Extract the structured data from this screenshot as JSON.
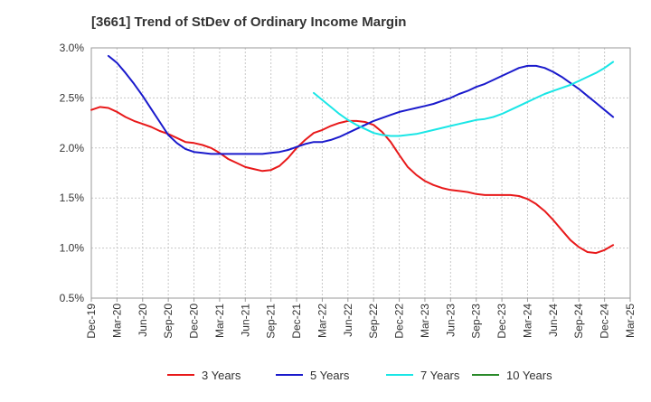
{
  "chart_data": {
    "type": "line",
    "title": "[3661]  Trend of StDev of Ordinary Income Margin",
    "xlabel": "",
    "ylabel": "",
    "x_ticks": [
      "Dec-19",
      "Mar-20",
      "Jun-20",
      "Sep-20",
      "Dec-20",
      "Mar-21",
      "Jun-21",
      "Sep-21",
      "Dec-21",
      "Mar-22",
      "Jun-22",
      "Sep-22",
      "Dec-22",
      "Mar-23",
      "Jun-23",
      "Sep-23",
      "Dec-23",
      "Mar-24",
      "Jun-24",
      "Sep-24",
      "Dec-24",
      "Mar-25"
    ],
    "y_ticks": [
      "0.5%",
      "1.0%",
      "1.5%",
      "2.0%",
      "2.5%",
      "3.0%"
    ],
    "ylim": [
      0.5,
      3.0
    ],
    "y_unit": "%",
    "grid": true,
    "legend_position": "bottom",
    "series": [
      {
        "name": "3 Years",
        "color": "#e8191a",
        "points": [
          {
            "x": "Dec-19",
            "y": 2.38
          },
          {
            "x": "Jan-20",
            "y": 2.41
          },
          {
            "x": "Feb-20",
            "y": 2.4
          },
          {
            "x": "Mar-20",
            "y": 2.36
          },
          {
            "x": "Apr-20",
            "y": 2.31
          },
          {
            "x": "May-20",
            "y": 2.27
          },
          {
            "x": "Jun-20",
            "y": 2.24
          },
          {
            "x": "Jul-20",
            "y": 2.21
          },
          {
            "x": "Aug-20",
            "y": 2.17
          },
          {
            "x": "Sep-20",
            "y": 2.14
          },
          {
            "x": "Oct-20",
            "y": 2.1
          },
          {
            "x": "Nov-20",
            "y": 2.06
          },
          {
            "x": "Dec-20",
            "y": 2.05
          },
          {
            "x": "Jan-21",
            "y": 2.03
          },
          {
            "x": "Feb-21",
            "y": 2.0
          },
          {
            "x": "Mar-21",
            "y": 1.95
          },
          {
            "x": "Apr-21",
            "y": 1.89
          },
          {
            "x": "May-21",
            "y": 1.85
          },
          {
            "x": "Jun-21",
            "y": 1.81
          },
          {
            "x": "Jul-21",
            "y": 1.79
          },
          {
            "x": "Aug-21",
            "y": 1.77
          },
          {
            "x": "Sep-21",
            "y": 1.78
          },
          {
            "x": "Oct-21",
            "y": 1.82
          },
          {
            "x": "Nov-21",
            "y": 1.9
          },
          {
            "x": "Dec-21",
            "y": 2.0
          },
          {
            "x": "Jan-22",
            "y": 2.08
          },
          {
            "x": "Feb-22",
            "y": 2.15
          },
          {
            "x": "Mar-22",
            "y": 2.18
          },
          {
            "x": "Apr-22",
            "y": 2.22
          },
          {
            "x": "May-22",
            "y": 2.25
          },
          {
            "x": "Jun-22",
            "y": 2.27
          },
          {
            "x": "Jul-22",
            "y": 2.27
          },
          {
            "x": "Aug-22",
            "y": 2.26
          },
          {
            "x": "Sep-22",
            "y": 2.23
          },
          {
            "x": "Oct-22",
            "y": 2.16
          },
          {
            "x": "Nov-22",
            "y": 2.06
          },
          {
            "x": "Dec-22",
            "y": 1.93
          },
          {
            "x": "Jan-23",
            "y": 1.81
          },
          {
            "x": "Feb-23",
            "y": 1.73
          },
          {
            "x": "Mar-23",
            "y": 1.67
          },
          {
            "x": "Apr-23",
            "y": 1.63
          },
          {
            "x": "May-23",
            "y": 1.6
          },
          {
            "x": "Jun-23",
            "y": 1.58
          },
          {
            "x": "Jul-23",
            "y": 1.57
          },
          {
            "x": "Aug-23",
            "y": 1.56
          },
          {
            "x": "Sep-23",
            "y": 1.54
          },
          {
            "x": "Oct-23",
            "y": 1.53
          },
          {
            "x": "Nov-23",
            "y": 1.53
          },
          {
            "x": "Dec-23",
            "y": 1.53
          },
          {
            "x": "Jan-24",
            "y": 1.53
          },
          {
            "x": "Feb-24",
            "y": 1.52
          },
          {
            "x": "Mar-24",
            "y": 1.49
          },
          {
            "x": "Apr-24",
            "y": 1.44
          },
          {
            "x": "May-24",
            "y": 1.37
          },
          {
            "x": "Jun-24",
            "y": 1.28
          },
          {
            "x": "Jul-24",
            "y": 1.18
          },
          {
            "x": "Aug-24",
            "y": 1.08
          },
          {
            "x": "Sep-24",
            "y": 1.01
          },
          {
            "x": "Oct-24",
            "y": 0.96
          },
          {
            "x": "Nov-24",
            "y": 0.95
          },
          {
            "x": "Dec-24",
            "y": 0.98
          },
          {
            "x": "Jan-25",
            "y": 1.03
          }
        ]
      },
      {
        "name": "5 Years",
        "color": "#1a1acc",
        "points": [
          {
            "x": "Feb-20",
            "y": 2.92
          },
          {
            "x": "Mar-20",
            "y": 2.85
          },
          {
            "x": "Apr-20",
            "y": 2.75
          },
          {
            "x": "May-20",
            "y": 2.64
          },
          {
            "x": "Jun-20",
            "y": 2.52
          },
          {
            "x": "Jul-20",
            "y": 2.39
          },
          {
            "x": "Aug-20",
            "y": 2.26
          },
          {
            "x": "Sep-20",
            "y": 2.13
          },
          {
            "x": "Oct-20",
            "y": 2.05
          },
          {
            "x": "Nov-20",
            "y": 1.99
          },
          {
            "x": "Dec-20",
            "y": 1.96
          },
          {
            "x": "Jan-21",
            "y": 1.95
          },
          {
            "x": "Feb-21",
            "y": 1.94
          },
          {
            "x": "Mar-21",
            "y": 1.94
          },
          {
            "x": "Apr-21",
            "y": 1.94
          },
          {
            "x": "May-21",
            "y": 1.94
          },
          {
            "x": "Jun-21",
            "y": 1.94
          },
          {
            "x": "Jul-21",
            "y": 1.94
          },
          {
            "x": "Aug-21",
            "y": 1.94
          },
          {
            "x": "Sep-21",
            "y": 1.95
          },
          {
            "x": "Oct-21",
            "y": 1.96
          },
          {
            "x": "Nov-21",
            "y": 1.98
          },
          {
            "x": "Dec-21",
            "y": 2.01
          },
          {
            "x": "Jan-22",
            "y": 2.04
          },
          {
            "x": "Feb-22",
            "y": 2.06
          },
          {
            "x": "Mar-22",
            "y": 2.06
          },
          {
            "x": "Apr-22",
            "y": 2.08
          },
          {
            "x": "May-22",
            "y": 2.11
          },
          {
            "x": "Jun-22",
            "y": 2.15
          },
          {
            "x": "Jul-22",
            "y": 2.19
          },
          {
            "x": "Aug-22",
            "y": 2.23
          },
          {
            "x": "Sep-22",
            "y": 2.27
          },
          {
            "x": "Oct-22",
            "y": 2.3
          },
          {
            "x": "Nov-22",
            "y": 2.33
          },
          {
            "x": "Dec-22",
            "y": 2.36
          },
          {
            "x": "Jan-23",
            "y": 2.38
          },
          {
            "x": "Feb-23",
            "y": 2.4
          },
          {
            "x": "Mar-23",
            "y": 2.42
          },
          {
            "x": "Apr-23",
            "y": 2.44
          },
          {
            "x": "May-23",
            "y": 2.47
          },
          {
            "x": "Jun-23",
            "y": 2.5
          },
          {
            "x": "Jul-23",
            "y": 2.54
          },
          {
            "x": "Aug-23",
            "y": 2.57
          },
          {
            "x": "Sep-23",
            "y": 2.61
          },
          {
            "x": "Oct-23",
            "y": 2.64
          },
          {
            "x": "Nov-23",
            "y": 2.68
          },
          {
            "x": "Dec-23",
            "y": 2.72
          },
          {
            "x": "Jan-24",
            "y": 2.76
          },
          {
            "x": "Feb-24",
            "y": 2.8
          },
          {
            "x": "Mar-24",
            "y": 2.82
          },
          {
            "x": "Apr-24",
            "y": 2.82
          },
          {
            "x": "May-24",
            "y": 2.8
          },
          {
            "x": "Jun-24",
            "y": 2.76
          },
          {
            "x": "Jul-24",
            "y": 2.71
          },
          {
            "x": "Aug-24",
            "y": 2.65
          },
          {
            "x": "Sep-24",
            "y": 2.59
          },
          {
            "x": "Oct-24",
            "y": 2.52
          },
          {
            "x": "Nov-24",
            "y": 2.45
          },
          {
            "x": "Dec-24",
            "y": 2.38
          },
          {
            "x": "Jan-25",
            "y": 2.31
          }
        ]
      },
      {
        "name": "7 Years",
        "color": "#1ae6e6",
        "points": [
          {
            "x": "Feb-22",
            "y": 2.55
          },
          {
            "x": "Mar-22",
            "y": 2.48
          },
          {
            "x": "Apr-22",
            "y": 2.41
          },
          {
            "x": "May-22",
            "y": 2.34
          },
          {
            "x": "Jun-22",
            "y": 2.28
          },
          {
            "x": "Jul-22",
            "y": 2.23
          },
          {
            "x": "Aug-22",
            "y": 2.19
          },
          {
            "x": "Sep-22",
            "y": 2.15
          },
          {
            "x": "Oct-22",
            "y": 2.13
          },
          {
            "x": "Nov-22",
            "y": 2.12
          },
          {
            "x": "Dec-22",
            "y": 2.12
          },
          {
            "x": "Jan-23",
            "y": 2.13
          },
          {
            "x": "Feb-23",
            "y": 2.14
          },
          {
            "x": "Mar-23",
            "y": 2.16
          },
          {
            "x": "Apr-23",
            "y": 2.18
          },
          {
            "x": "May-23",
            "y": 2.2
          },
          {
            "x": "Jun-23",
            "y": 2.22
          },
          {
            "x": "Jul-23",
            "y": 2.24
          },
          {
            "x": "Aug-23",
            "y": 2.26
          },
          {
            "x": "Sep-23",
            "y": 2.28
          },
          {
            "x": "Oct-23",
            "y": 2.29
          },
          {
            "x": "Nov-23",
            "y": 2.31
          },
          {
            "x": "Dec-23",
            "y": 2.34
          },
          {
            "x": "Jan-24",
            "y": 2.38
          },
          {
            "x": "Feb-24",
            "y": 2.42
          },
          {
            "x": "Mar-24",
            "y": 2.46
          },
          {
            "x": "Apr-24",
            "y": 2.5
          },
          {
            "x": "May-24",
            "y": 2.54
          },
          {
            "x": "Jun-24",
            "y": 2.57
          },
          {
            "x": "Jul-24",
            "y": 2.6
          },
          {
            "x": "Aug-24",
            "y": 2.63
          },
          {
            "x": "Sep-24",
            "y": 2.67
          },
          {
            "x": "Oct-24",
            "y": 2.71
          },
          {
            "x": "Nov-24",
            "y": 2.75
          },
          {
            "x": "Dec-24",
            "y": 2.8
          },
          {
            "x": "Jan-25",
            "y": 2.86
          }
        ]
      },
      {
        "name": "10 Years",
        "color": "#2a8a2a",
        "points": []
      }
    ]
  }
}
